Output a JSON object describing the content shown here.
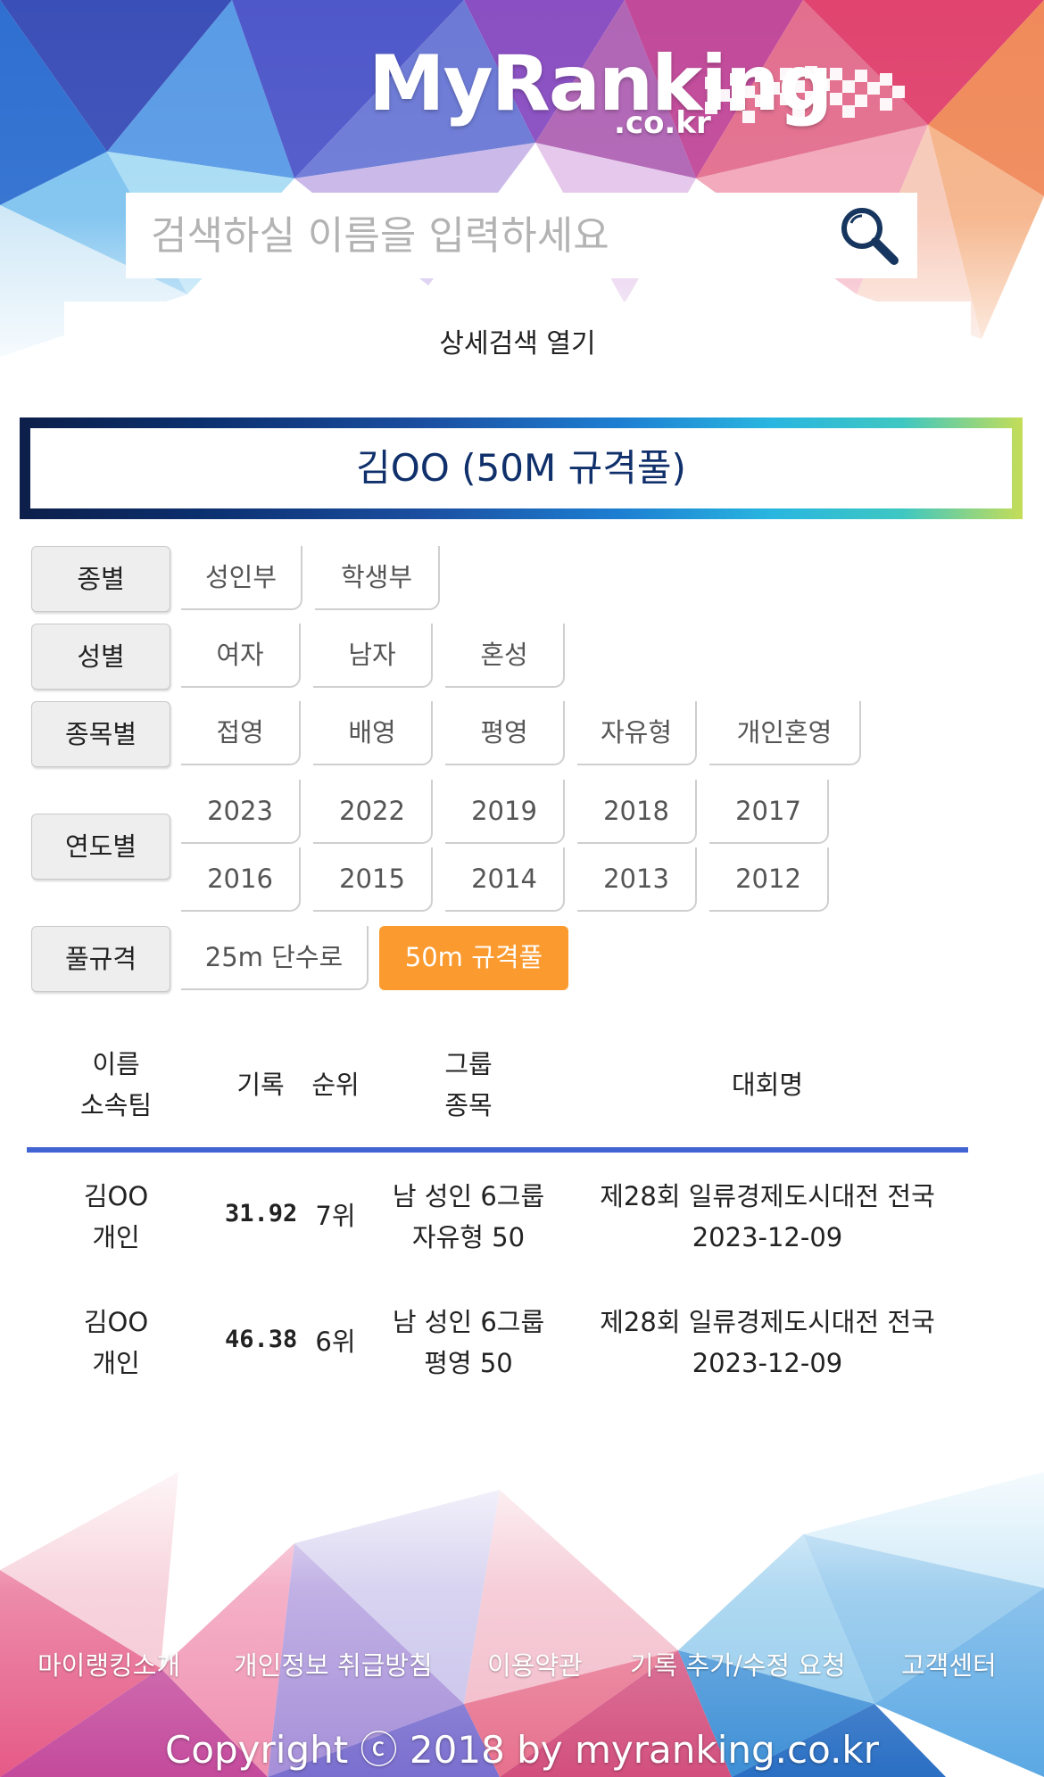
{
  "brand": {
    "logo_text": "MyRanking",
    "logo_domain": ".co.kr"
  },
  "search": {
    "placeholder": "검색하실 이름을 입력하세요",
    "value": ""
  },
  "detail_search_label": "상세검색 열기",
  "title": "김OO (50M 규격풀)",
  "filters": {
    "division": {
      "label": "종별",
      "options": [
        "성인부",
        "학생부"
      ]
    },
    "gender": {
      "label": "성별",
      "options": [
        "여자",
        "남자",
        "혼성"
      ]
    },
    "event": {
      "label": "종목별",
      "options": [
        "접영",
        "배영",
        "평영",
        "자유형",
        "개인혼영"
      ]
    },
    "year": {
      "label": "연도별",
      "options": [
        "2023",
        "2022",
        "2019",
        "2018",
        "2017",
        "2016",
        "2015",
        "2014",
        "2013",
        "2012"
      ]
    },
    "pool": {
      "label": "풀규격",
      "options": [
        "25m 단수로",
        "50m 규격풀"
      ],
      "selected": "50m 규격풀"
    }
  },
  "table": {
    "headers": {
      "name_line1": "이름",
      "name_line2": "소속팀",
      "record": "기록",
      "rank": "순위",
      "group_line1": "그룹",
      "group_line2": "종목",
      "competition": "대회명"
    },
    "rows": [
      {
        "name": "김OO",
        "team": "개인",
        "record": "31.92",
        "rank": "7위",
        "group": "남 성인 6그룹",
        "event": "자유형 50",
        "competition": "제28회 일류경제도시대전 전국",
        "date": "2023-12-09"
      },
      {
        "name": "김OO",
        "team": "개인",
        "record": "46.38",
        "rank": "6위",
        "group": "남 성인 6그룹",
        "event": "평영 50",
        "competition": "제28회 일류경제도시대전 전국",
        "date": "2023-12-09"
      }
    ]
  },
  "footer": {
    "links": [
      "마이랭킹소개",
      "개인정보 취급방침",
      "이용약관",
      "기록 추가/수정 요청",
      "고객센터"
    ],
    "copyright": "Copyright ⓒ 2018 by myranking.co.kr"
  },
  "colors": {
    "accent": "#fb9a2e",
    "table_rule": "#4263d2",
    "title_text": "#10306b"
  },
  "icons": {
    "search": "search-icon"
  }
}
